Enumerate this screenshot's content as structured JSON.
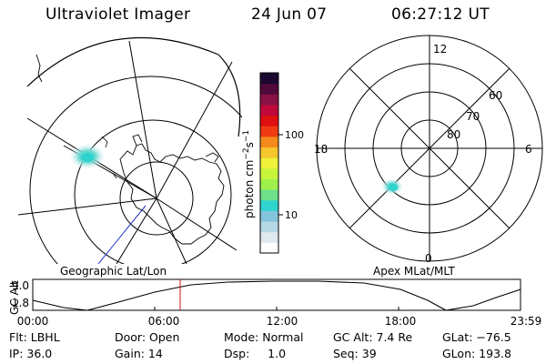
{
  "header": {
    "title": "Ultraviolet Imager",
    "date": "24 Jun 07",
    "time": "06:27:12 UT"
  },
  "colorbar": {
    "label": "photon cm",
    "label_sup1": "−2",
    "label_mid": "s",
    "label_sup2": "−1",
    "ticks": [
      "100",
      "10"
    ],
    "colors": [
      "#ffffff",
      "#dfe9ee",
      "#b6d8e4",
      "#84c4da",
      "#30d4cf",
      "#6fe08c",
      "#9ff04a",
      "#c8f53c",
      "#eef23a",
      "#f5c62e",
      "#f48a1c",
      "#ee3b12",
      "#e01010",
      "#c0083a",
      "#8a1044",
      "#50083a",
      "#1a0830"
    ]
  },
  "left_map": {
    "caption": "Geographic Lat/Lon"
  },
  "right_map": {
    "caption": "Apex MLat/MLT",
    "mlt_labels": [
      "12",
      "18",
      "6",
      "0"
    ],
    "lat_labels": [
      "60",
      "70",
      "80"
    ]
  },
  "altitude_plot": {
    "ylabel": "GC Alt",
    "yticks": [
      "9.0",
      "1.8"
    ],
    "xticks": [
      "00:00",
      "06:00",
      "12:00",
      "18:00",
      "23:59"
    ],
    "marker_color": "#d01010"
  },
  "footer": {
    "flt": "Flt: LBHL",
    "door": "Door: Open",
    "mode": "Mode: Normal",
    "gcalt": "GC Alt: 7.4 Re",
    "glat": "GLat: −76.5",
    "ip": "IP: 36.0",
    "gain": "Gain: 14",
    "dsp": "Dsp:     1.0",
    "seq": "Seq: 39",
    "glon": "GLon: 193.8"
  }
}
